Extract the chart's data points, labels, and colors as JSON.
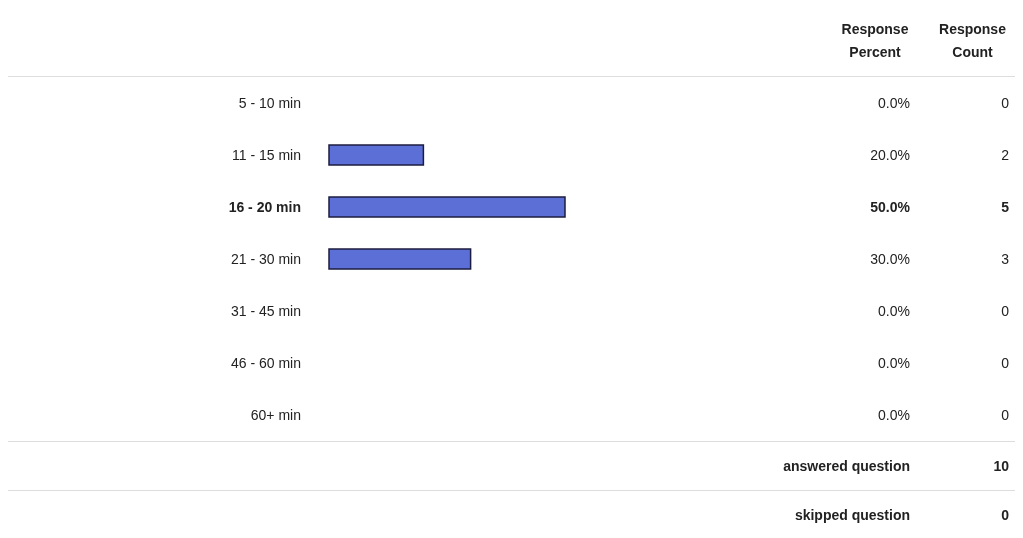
{
  "chart_data": {
    "type": "bar",
    "orientation": "horizontal",
    "categories": [
      "5 - 10 min",
      "11 - 15 min",
      "16 - 20 min",
      "21 - 30 min",
      "31 - 45 min",
      "46 - 60 min",
      "60+ min"
    ],
    "series": [
      {
        "name": "Response Percent",
        "color": "#5b6fd6",
        "values": [
          0,
          20,
          50,
          30,
          0,
          0,
          0
        ],
        "value_labels": [
          "0.0%",
          "20.0%",
          "50.0%",
          "30.0%",
          "0.0%",
          "0.0%",
          "0.0%"
        ]
      }
    ],
    "grid": false,
    "legend": false,
    "annotations": [
      "Response Count",
      "0",
      "2",
      "5",
      "3",
      "0",
      "0",
      "0",
      "answered question",
      "10",
      "skipped question",
      "0"
    ]
  }
}
